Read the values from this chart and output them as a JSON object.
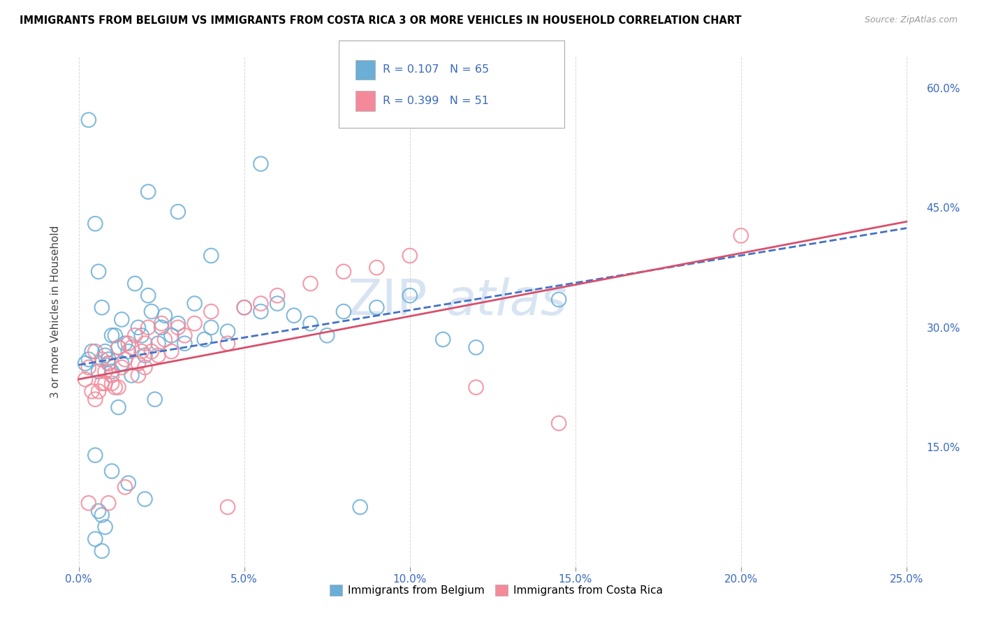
{
  "title": "IMMIGRANTS FROM BELGIUM VS IMMIGRANTS FROM COSTA RICA 3 OR MORE VEHICLES IN HOUSEHOLD CORRELATION CHART",
  "source": "Source: ZipAtlas.com",
  "ylabel": "3 or more Vehicles in Household",
  "x_ticklabels": [
    "0.0%",
    "5.0%",
    "10.0%",
    "15.0%",
    "20.0%",
    "25.0%"
  ],
  "x_ticks": [
    0.0,
    5.0,
    10.0,
    15.0,
    20.0,
    25.0
  ],
  "y_ticklabels_right": [
    "15.0%",
    "30.0%",
    "45.0%",
    "60.0%"
  ],
  "y_ticks_right": [
    15.0,
    30.0,
    45.0,
    60.0
  ],
  "xlim": [
    -0.3,
    25.5
  ],
  "ylim": [
    0.0,
    64.0
  ],
  "legend_label1": "Immigrants from Belgium",
  "legend_label2": "Immigrants from Costa Rica",
  "R_belgium": 0.107,
  "N_belgium": 65,
  "R_costa_rica": 0.399,
  "N_costa_rica": 51,
  "belgium_color": "#6baed6",
  "costa_rica_color": "#f4899a",
  "belgium_line_color": "#4472c4",
  "costa_rica_line_color": "#d94f6b",
  "watermark": "ZIPAtlas",
  "background_color": "#ffffff",
  "grid_color": "#cccccc",
  "title_color": "#000000",
  "belgium_scatter_x": [
    0.2,
    0.3,
    0.3,
    0.4,
    0.5,
    0.5,
    0.5,
    0.6,
    0.6,
    0.6,
    0.7,
    0.7,
    0.7,
    0.8,
    0.8,
    0.8,
    0.9,
    0.9,
    1.0,
    1.0,
    1.0,
    1.1,
    1.2,
    1.2,
    1.3,
    1.4,
    1.5,
    1.5,
    1.6,
    1.7,
    1.8,
    1.9,
    2.0,
    2.0,
    2.1,
    2.2,
    2.3,
    2.4,
    2.5,
    2.6,
    2.8,
    3.0,
    3.2,
    3.5,
    3.8,
    4.0,
    4.5,
    5.0,
    5.5,
    6.0,
    6.5,
    7.0,
    7.5,
    8.0,
    8.5,
    9.0,
    10.0,
    11.0,
    12.0,
    14.5,
    1.3,
    2.1,
    3.0,
    4.0,
    5.5
  ],
  "belgium_scatter_y": [
    25.5,
    26.0,
    56.0,
    27.0,
    14.0,
    43.0,
    3.5,
    24.5,
    37.0,
    7.0,
    32.5,
    6.5,
    2.0,
    26.5,
    27.0,
    5.0,
    26.0,
    25.5,
    24.5,
    29.0,
    12.0,
    29.0,
    27.5,
    20.0,
    25.5,
    28.0,
    27.0,
    10.5,
    24.0,
    35.5,
    30.0,
    29.0,
    26.5,
    8.5,
    34.0,
    32.0,
    21.0,
    28.0,
    30.0,
    31.5,
    29.0,
    30.5,
    28.0,
    33.0,
    28.5,
    30.0,
    29.5,
    32.5,
    32.0,
    33.0,
    31.5,
    30.5,
    29.0,
    32.0,
    7.5,
    32.5,
    34.0,
    28.5,
    27.5,
    33.5,
    31.0,
    47.0,
    44.5,
    39.0,
    50.5
  ],
  "costa_rica_scatter_x": [
    0.2,
    0.3,
    0.3,
    0.4,
    0.5,
    0.5,
    0.6,
    0.7,
    0.7,
    0.8,
    0.8,
    0.9,
    0.9,
    1.0,
    1.0,
    1.1,
    1.2,
    1.2,
    1.3,
    1.4,
    1.4,
    1.5,
    1.6,
    1.7,
    1.8,
    1.8,
    1.9,
    2.0,
    2.0,
    2.1,
    2.2,
    2.4,
    2.5,
    2.6,
    2.8,
    3.0,
    3.2,
    3.5,
    4.0,
    4.5,
    4.5,
    5.0,
    5.5,
    6.0,
    7.0,
    8.0,
    9.0,
    10.0,
    12.0,
    14.5,
    20.0
  ],
  "costa_rica_scatter_y": [
    23.5,
    25.0,
    8.0,
    22.0,
    21.0,
    27.0,
    22.0,
    26.0,
    23.0,
    23.0,
    24.5,
    25.5,
    8.0,
    24.0,
    23.0,
    22.5,
    27.5,
    22.5,
    25.0,
    26.0,
    10.0,
    28.0,
    27.5,
    29.0,
    25.5,
    24.0,
    27.0,
    28.0,
    25.0,
    30.0,
    27.0,
    26.5,
    30.5,
    28.5,
    27.0,
    30.0,
    29.0,
    30.5,
    32.0,
    28.0,
    7.5,
    32.5,
    33.0,
    34.0,
    35.5,
    37.0,
    37.5,
    39.0,
    22.5,
    18.0,
    41.5
  ]
}
